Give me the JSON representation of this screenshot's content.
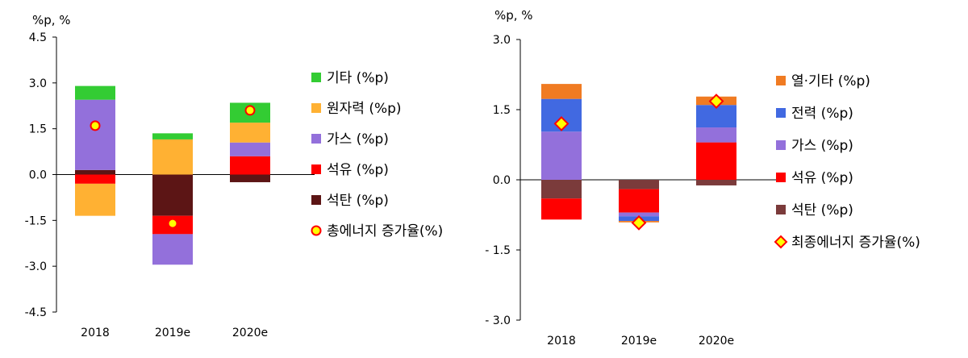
{
  "chart_data": [
    {
      "type": "bar",
      "stacked": true,
      "unit_label": "%p, %",
      "categories": [
        "2018",
        "2019e",
        "2020e"
      ],
      "ylim": [
        -4.5,
        4.5
      ],
      "yticks": [
        "4.5",
        "3.0",
        "1.5",
        "0.0",
        "-1.5",
        "-3.0",
        "-4.5"
      ],
      "series": [
        {
          "name": "석탄 (%p)",
          "color": "#5c1515",
          "values": [
            0.15,
            -1.35,
            -0.25
          ]
        },
        {
          "name": "석유 (%p)",
          "color": "#ff0000",
          "values": [
            -0.3,
            -0.6,
            0.6
          ]
        },
        {
          "name": "가스 (%p)",
          "color": "#9370db",
          "values": [
            2.3,
            -1.0,
            0.45
          ]
        },
        {
          "name": "원자력 (%p)",
          "color": "#ffb133",
          "values": [
            -1.05,
            1.15,
            0.65
          ]
        },
        {
          "name": "기타 (%p)",
          "color": "#33cc33",
          "values": [
            0.45,
            0.2,
            0.65
          ]
        }
      ],
      "total": {
        "name": "총에너지 증가율(%)",
        "marker": "circle",
        "values": [
          1.6,
          -1.6,
          2.1
        ]
      }
    },
    {
      "type": "bar",
      "stacked": true,
      "unit_label": "%p, %",
      "categories": [
        "2018",
        "2019e",
        "2020e"
      ],
      "ylim": [
        -3.0,
        3.0
      ],
      "yticks": [
        "3.0",
        "1.5",
        "0.0",
        "- 1.5",
        "- 3.0"
      ],
      "series": [
        {
          "name": "석탄 (%p)",
          "color": "#7b3b3b",
          "values": [
            -0.4,
            -0.2,
            -0.12
          ]
        },
        {
          "name": "석유 (%p)",
          "color": "#ff0000",
          "values": [
            -0.45,
            -0.5,
            0.8
          ]
        },
        {
          "name": "가스 (%p)",
          "color": "#9370db",
          "values": [
            1.03,
            -0.08,
            0.32
          ]
        },
        {
          "name": "전력 (%p)",
          "color": "#4169e1",
          "values": [
            0.7,
            -0.1,
            0.48
          ]
        },
        {
          "name": "열·기타 (%p)",
          "color": "#f07b22",
          "values": [
            0.32,
            -0.03,
            0.18
          ]
        }
      ],
      "total": {
        "name": "최종에너지 증가율(%)",
        "marker": "diamond",
        "values": [
          1.2,
          -0.92,
          1.68
        ]
      }
    }
  ]
}
